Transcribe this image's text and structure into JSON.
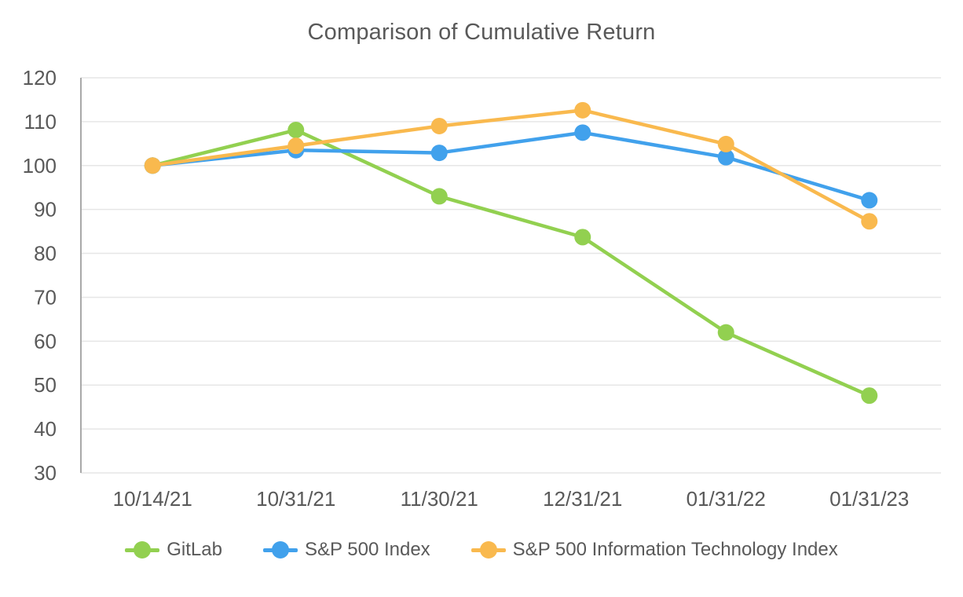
{
  "page": {
    "background_color": "#ffffff",
    "text_color": "#595959",
    "grid_color": "#e6e6e6",
    "axis_line_color": "#a9a9a9"
  },
  "chart_data": {
    "type": "line",
    "title": "Comparison of Cumulative Return",
    "categories": [
      "10/14/21",
      "10/31/21",
      "11/30/21",
      "12/31/21",
      "01/31/22",
      "01/31/23"
    ],
    "series": [
      {
        "name": "GitLab",
        "color": "#92D050",
        "values": [
          100,
          108.1,
          93,
          83.7,
          62,
          47.6
        ]
      },
      {
        "name": "S&P 500 Index",
        "color": "#41A1EC",
        "values": [
          100,
          103.5,
          102.9,
          107.5,
          101.9,
          92.1
        ]
      },
      {
        "name": "S&P 500 Information Technology Index",
        "color": "#F9B94E",
        "values": [
          100,
          104.5,
          109,
          112.6,
          104.9,
          87.3
        ]
      }
    ],
    "y_axis": {
      "min": 30,
      "max": 120,
      "step": 10,
      "tick_labels": [
        "30",
        "40",
        "50",
        "60",
        "70",
        "80",
        "90",
        "100",
        "110",
        "120"
      ]
    },
    "x_axis": {
      "tick_labels": [
        "10/14/21",
        "10/31/21",
        "11/30/21",
        "12/31/21",
        "01/31/22",
        "01/31/23"
      ]
    },
    "grid": true,
    "legend_position": "bottom",
    "marker": "circle"
  }
}
